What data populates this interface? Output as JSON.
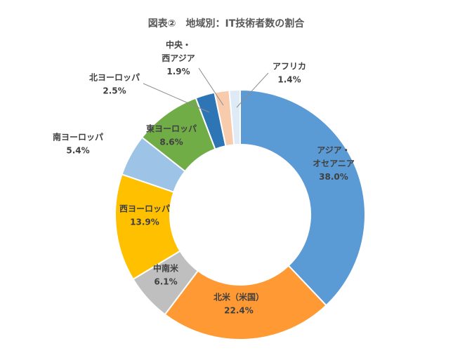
{
  "chart_data": {
    "type": "pie",
    "subtype": "doughnut",
    "title": "図表②　地域別：IT技術者数の割合",
    "slices": [
      {
        "name": "アジア・オセアニア",
        "value": 38.0,
        "label_lines": [
          "アジア・",
          "オセアニア"
        ],
        "value_label": "38.0%",
        "color": "#5B9BD5"
      },
      {
        "name": "北米（米国）",
        "value": 22.4,
        "label_lines": [
          "北米（米国）"
        ],
        "value_label": "22.4%",
        "color": "#FF9933"
      },
      {
        "name": "中南米",
        "value": 6.1,
        "label_lines": [
          "中南米"
        ],
        "value_label": "6.1%",
        "color": "#BFBFBF"
      },
      {
        "name": "西ヨーロッパ",
        "value": 13.9,
        "label_lines": [
          "西ヨーロッパ"
        ],
        "value_label": "13.9%",
        "color": "#FFC000"
      },
      {
        "name": "南ヨーロッパ",
        "value": 5.4,
        "label_lines": [
          "南ヨーロッパ"
        ],
        "value_label": "5.4%",
        "color": "#9DC3E6"
      },
      {
        "name": "東ヨーロッパ",
        "value": 8.6,
        "label_lines": [
          "東ヨーロッパ"
        ],
        "value_label": "8.6%",
        "color": "#70AD47"
      },
      {
        "name": "北ヨーロッパ",
        "value": 2.5,
        "label_lines": [
          "北ヨーロッパ"
        ],
        "value_label": "2.5%",
        "color": "#2E75B6"
      },
      {
        "name": "中央・西アジア",
        "value": 1.9,
        "label_lines": [
          "中央・",
          "西アジア"
        ],
        "value_label": "1.9%",
        "color": "#F8CBAD"
      },
      {
        "name": "アフリカ",
        "value": 1.4,
        "label_lines": [
          "アフリカ"
        ],
        "value_label": "1.4%",
        "color": "#DEEBF7"
      }
    ],
    "start": "12 o'clock",
    "direction": "clockwise",
    "legend": "none"
  }
}
